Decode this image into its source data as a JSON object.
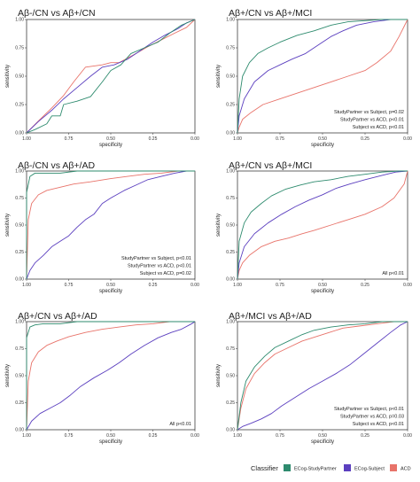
{
  "chart_data": [
    {
      "type": "line",
      "title": "Aβ-/CN vs Aβ+/CN",
      "xlabel": "specificity",
      "ylabel": "sensitivity",
      "xlim": [
        1.0,
        0.0
      ],
      "ylim": [
        0.0,
        1.0
      ],
      "xticks": [
        "1.00",
        "0.75",
        "0.50",
        "0.25",
        "0.00"
      ],
      "yticks": [
        "0.00",
        "0.25",
        "0.50",
        "0.75",
        "1.00"
      ],
      "annotations": [],
      "series": [
        {
          "name": "ECog-StudyPartner",
          "color": "#2e8b6e",
          "x": [
            1.0,
            0.95,
            0.88,
            0.85,
            0.8,
            0.78,
            0.7,
            0.62,
            0.55,
            0.5,
            0.44,
            0.38,
            0.3,
            0.22,
            0.15,
            0.08,
            0.0
          ],
          "y": [
            0.0,
            0.03,
            0.08,
            0.15,
            0.15,
            0.25,
            0.28,
            0.32,
            0.45,
            0.55,
            0.6,
            0.7,
            0.75,
            0.8,
            0.88,
            0.95,
            1.0
          ]
        },
        {
          "name": "ECog-Subject",
          "color": "#5b3fbf",
          "x": [
            1.0,
            0.93,
            0.85,
            0.78,
            0.7,
            0.62,
            0.55,
            0.48,
            0.4,
            0.33,
            0.25,
            0.18,
            0.1,
            0.05,
            0.0
          ],
          "y": [
            0.0,
            0.1,
            0.2,
            0.3,
            0.4,
            0.5,
            0.58,
            0.6,
            0.65,
            0.72,
            0.8,
            0.86,
            0.92,
            0.97,
            1.0
          ]
        },
        {
          "name": "ACD",
          "color": "#e8736a",
          "x": [
            1.0,
            0.92,
            0.85,
            0.78,
            0.72,
            0.65,
            0.55,
            0.5,
            0.45,
            0.35,
            0.28,
            0.2,
            0.12,
            0.05,
            0.0
          ],
          "y": [
            0.0,
            0.12,
            0.22,
            0.33,
            0.45,
            0.58,
            0.6,
            0.62,
            0.62,
            0.7,
            0.76,
            0.82,
            0.88,
            0.93,
            1.0
          ]
        }
      ]
    },
    {
      "type": "line",
      "title": "Aβ+/CN vs Aβ+/MCI",
      "xlabel": "specificity",
      "ylabel": "sensitivity",
      "xlim": [
        1.0,
        0.0
      ],
      "ylim": [
        0.0,
        1.0
      ],
      "xticks": [
        "1.00",
        "0.75",
        "0.50",
        "0.25",
        "0.00"
      ],
      "yticks": [
        "0.00",
        "0.25",
        "0.50",
        "0.75",
        "1.00"
      ],
      "annotations": [
        "StudyPartner vs Subject, p=0.02",
        "StudyPartner vs ACD, p<0.01",
        "Subject vs ACD, p<0.01"
      ],
      "series": [
        {
          "name": "ECog-StudyPartner",
          "color": "#2e8b6e",
          "x": [
            1.0,
            0.99,
            0.97,
            0.93,
            0.88,
            0.82,
            0.75,
            0.65,
            0.55,
            0.45,
            0.35,
            0.25,
            0.15,
            0.0
          ],
          "y": [
            0.0,
            0.3,
            0.5,
            0.62,
            0.7,
            0.75,
            0.8,
            0.86,
            0.9,
            0.95,
            0.98,
            0.99,
            1.0,
            1.0
          ]
        },
        {
          "name": "ECog-Subject",
          "color": "#5b3fbf",
          "x": [
            1.0,
            0.99,
            0.96,
            0.9,
            0.82,
            0.75,
            0.68,
            0.6,
            0.52,
            0.45,
            0.38,
            0.3,
            0.2,
            0.1,
            0.0
          ],
          "y": [
            0.0,
            0.15,
            0.3,
            0.45,
            0.55,
            0.6,
            0.65,
            0.7,
            0.78,
            0.85,
            0.9,
            0.95,
            0.98,
            1.0,
            1.0
          ]
        },
        {
          "name": "ACD",
          "color": "#e8736a",
          "x": [
            1.0,
            0.99,
            0.97,
            0.92,
            0.85,
            0.75,
            0.65,
            0.55,
            0.45,
            0.35,
            0.25,
            0.18,
            0.1,
            0.05,
            0.0
          ],
          "y": [
            0.0,
            0.05,
            0.12,
            0.18,
            0.25,
            0.3,
            0.35,
            0.4,
            0.45,
            0.5,
            0.55,
            0.62,
            0.72,
            0.85,
            1.0
          ]
        }
      ]
    },
    {
      "type": "line",
      "title": "Aβ-/CN vs Aβ+/AD",
      "xlabel": "specificity",
      "ylabel": "sensitivity",
      "xlim": [
        1.0,
        0.0
      ],
      "ylim": [
        0.0,
        1.0
      ],
      "xticks": [
        "1.00",
        "0.75",
        "0.50",
        "0.25",
        "0.00"
      ],
      "yticks": [
        "0.00",
        "0.25",
        "0.50",
        "0.75",
        "1.00"
      ],
      "annotations": [
        "StudyPartner vs Subject, p<0.01",
        "StudyPartner vs ACD, p<0.01",
        "Subject vs ACD, p=0.02"
      ],
      "series": [
        {
          "name": "ECog-StudyPartner",
          "color": "#2e8b6e",
          "x": [
            1.0,
            1.0,
            0.98,
            0.95,
            0.9,
            0.8,
            0.7,
            0.6,
            0.5,
            0.4,
            0.3,
            0.2,
            0.1,
            0.0
          ],
          "y": [
            0.0,
            0.8,
            0.95,
            0.98,
            0.98,
            0.98,
            1.0,
            1.0,
            1.0,
            1.0,
            1.0,
            1.0,
            1.0,
            1.0
          ]
        },
        {
          "name": "ECog-Subject",
          "color": "#5b3fbf",
          "x": [
            1.0,
            0.98,
            0.95,
            0.9,
            0.85,
            0.8,
            0.75,
            0.7,
            0.65,
            0.6,
            0.55,
            0.5,
            0.42,
            0.35,
            0.28,
            0.2,
            0.12,
            0.05,
            0.0
          ],
          "y": [
            0.0,
            0.08,
            0.15,
            0.22,
            0.3,
            0.35,
            0.4,
            0.48,
            0.55,
            0.6,
            0.7,
            0.75,
            0.82,
            0.87,
            0.92,
            0.95,
            0.98,
            1.0,
            1.0
          ]
        },
        {
          "name": "ACD",
          "color": "#e8736a",
          "x": [
            1.0,
            0.99,
            0.97,
            0.93,
            0.88,
            0.8,
            0.72,
            0.62,
            0.5,
            0.4,
            0.3,
            0.2,
            0.1,
            0.0
          ],
          "y": [
            0.0,
            0.55,
            0.7,
            0.78,
            0.82,
            0.85,
            0.88,
            0.9,
            0.93,
            0.95,
            0.97,
            0.98,
            1.0,
            1.0
          ]
        }
      ]
    },
    {
      "type": "line",
      "title": "Aβ+/CN vs Aβ+/MCI",
      "xlabel": "specificity",
      "ylabel": "sensitivity",
      "xlim": [
        1.0,
        0.0
      ],
      "ylim": [
        0.0,
        1.0
      ],
      "xticks": [
        "1.00",
        "0.75",
        "0.50",
        "0.25",
        "0.00"
      ],
      "yticks": [
        "0.00",
        "0.25",
        "0.50",
        "0.75",
        "1.00"
      ],
      "annotations": [
        "All p<0.01"
      ],
      "series": [
        {
          "name": "ECog-StudyPartner",
          "color": "#2e8b6e",
          "x": [
            1.0,
            0.99,
            0.96,
            0.92,
            0.86,
            0.8,
            0.72,
            0.63,
            0.55,
            0.45,
            0.35,
            0.25,
            0.15,
            0.05,
            0.0
          ],
          "y": [
            0.0,
            0.35,
            0.52,
            0.62,
            0.7,
            0.77,
            0.83,
            0.87,
            0.9,
            0.92,
            0.95,
            0.97,
            0.99,
            1.0,
            1.0
          ]
        },
        {
          "name": "ECog-Subject",
          "color": "#5b3fbf",
          "x": [
            1.0,
            0.99,
            0.96,
            0.9,
            0.82,
            0.74,
            0.66,
            0.58,
            0.5,
            0.42,
            0.34,
            0.25,
            0.15,
            0.07,
            0.0
          ],
          "y": [
            0.0,
            0.15,
            0.3,
            0.42,
            0.52,
            0.6,
            0.67,
            0.73,
            0.78,
            0.84,
            0.88,
            0.92,
            0.96,
            0.99,
            1.0
          ]
        },
        {
          "name": "ACD",
          "color": "#e8736a",
          "x": [
            1.0,
            0.99,
            0.97,
            0.93,
            0.86,
            0.78,
            0.7,
            0.62,
            0.55,
            0.45,
            0.35,
            0.25,
            0.15,
            0.08,
            0.02,
            0.0
          ],
          "y": [
            0.0,
            0.08,
            0.15,
            0.22,
            0.3,
            0.35,
            0.38,
            0.42,
            0.45,
            0.5,
            0.55,
            0.6,
            0.67,
            0.75,
            0.88,
            1.0
          ]
        }
      ]
    },
    {
      "type": "line",
      "title": "Aβ+/CN vs Aβ+/AD",
      "xlabel": "specificity",
      "ylabel": "sensitivity",
      "xlim": [
        1.0,
        0.0
      ],
      "ylim": [
        0.0,
        1.0
      ],
      "xticks": [
        "1.00",
        "0.75",
        "0.50",
        "0.25",
        "0.00"
      ],
      "yticks": [
        "0.00",
        "0.25",
        "0.50",
        "0.75",
        "1.00"
      ],
      "annotations": [
        "All p<0.01"
      ],
      "series": [
        {
          "name": "ECog-StudyPartner",
          "color": "#2e8b6e",
          "x": [
            1.0,
            1.0,
            0.98,
            0.95,
            0.9,
            0.8,
            0.7,
            0.6,
            0.4,
            0.2,
            0.0
          ],
          "y": [
            0.0,
            0.85,
            0.95,
            0.97,
            0.98,
            0.98,
            1.0,
            1.0,
            1.0,
            1.0,
            1.0
          ]
        },
        {
          "name": "ECog-Subject",
          "color": "#5b3fbf",
          "x": [
            1.0,
            0.97,
            0.92,
            0.86,
            0.8,
            0.74,
            0.68,
            0.6,
            0.52,
            0.45,
            0.38,
            0.3,
            0.22,
            0.14,
            0.08,
            0.02,
            0.0
          ],
          "y": [
            0.0,
            0.08,
            0.15,
            0.2,
            0.25,
            0.32,
            0.4,
            0.48,
            0.55,
            0.62,
            0.7,
            0.78,
            0.85,
            0.9,
            0.93,
            0.98,
            1.0
          ]
        },
        {
          "name": "ACD",
          "color": "#e8736a",
          "x": [
            1.0,
            0.99,
            0.97,
            0.93,
            0.88,
            0.82,
            0.75,
            0.65,
            0.55,
            0.45,
            0.35,
            0.25,
            0.15,
            0.0
          ],
          "y": [
            0.0,
            0.45,
            0.62,
            0.72,
            0.78,
            0.82,
            0.86,
            0.9,
            0.93,
            0.95,
            0.97,
            0.98,
            1.0,
            1.0
          ]
        }
      ]
    },
    {
      "type": "line",
      "title": "Aβ+/MCI vs Aβ+/AD",
      "xlabel": "specificity",
      "ylabel": "sensitivity",
      "xlim": [
        1.0,
        0.0
      ],
      "ylim": [
        0.0,
        1.0
      ],
      "xticks": [
        "1.00",
        "0.75",
        "0.50",
        "0.25",
        "0.00"
      ],
      "yticks": [
        "0.00",
        "0.25",
        "0.50",
        "0.75",
        "1.00"
      ],
      "annotations": [
        "StudyPartner vs Subject, p<0.01",
        "StudyPartner vs ACD, p=0.03",
        "Subject vs ACD, p<0.01"
      ],
      "series": [
        {
          "name": "ECog-StudyPartner",
          "color": "#2e8b6e",
          "x": [
            1.0,
            0.98,
            0.95,
            0.9,
            0.84,
            0.78,
            0.7,
            0.62,
            0.55,
            0.45,
            0.35,
            0.25,
            0.15,
            0.05,
            0.0
          ],
          "y": [
            0.0,
            0.25,
            0.45,
            0.58,
            0.68,
            0.76,
            0.82,
            0.88,
            0.92,
            0.95,
            0.97,
            0.98,
            1.0,
            1.0,
            1.0
          ]
        },
        {
          "name": "ECog-Subject",
          "color": "#5b3fbf",
          "x": [
            1.0,
            0.97,
            0.92,
            0.86,
            0.8,
            0.74,
            0.66,
            0.58,
            0.5,
            0.42,
            0.34,
            0.26,
            0.18,
            0.1,
            0.04,
            0.0
          ],
          "y": [
            0.0,
            0.03,
            0.06,
            0.1,
            0.15,
            0.22,
            0.3,
            0.38,
            0.45,
            0.52,
            0.6,
            0.7,
            0.8,
            0.9,
            0.97,
            1.0
          ]
        },
        {
          "name": "ACD",
          "color": "#e8736a",
          "x": [
            1.0,
            0.98,
            0.95,
            0.9,
            0.84,
            0.78,
            0.7,
            0.62,
            0.54,
            0.46,
            0.38,
            0.28,
            0.18,
            0.08,
            0.0
          ],
          "y": [
            0.0,
            0.2,
            0.38,
            0.52,
            0.62,
            0.7,
            0.76,
            0.82,
            0.86,
            0.9,
            0.94,
            0.96,
            0.98,
            1.0,
            1.0
          ]
        }
      ]
    }
  ],
  "legend": {
    "title": "Classifier",
    "items": [
      {
        "label": "ECog-StudyPartner",
        "color": "#2e8b6e"
      },
      {
        "label": "ECog-Subject",
        "color": "#5b3fbf"
      },
      {
        "label": "ACD",
        "color": "#e8736a"
      }
    ]
  }
}
